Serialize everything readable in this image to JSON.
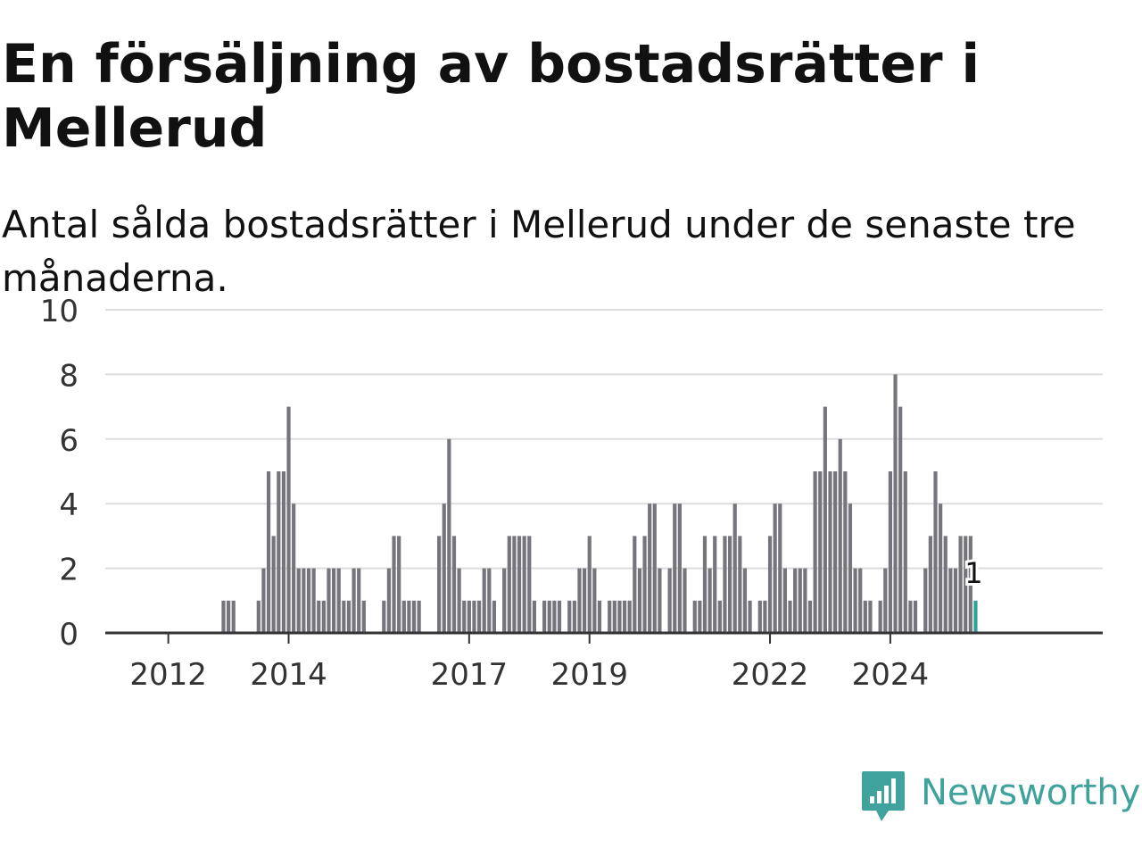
{
  "title": "En försäljning av bostadsrätter i Mellerud",
  "subtitle": "Antal sålda bostadsrätter i Mellerud under de senaste tre månaderna.",
  "brand": {
    "name": "Newsworthy",
    "icon": "newsworthy-logo-icon"
  },
  "colors": {
    "bar": "#76757d",
    "highlight": "#2fa198",
    "gridline": "#dddddd",
    "axis": "#333333",
    "brand": "#3fa29c"
  },
  "chart_data": {
    "type": "bar",
    "title": "",
    "xlabel": "",
    "ylabel": "",
    "ylim": [
      0,
      10
    ],
    "yticks": [
      0,
      2,
      4,
      6,
      8,
      10
    ],
    "grid": true,
    "x_start": "2011-01",
    "x_ticks": [
      {
        "label": "2012",
        "month": "2012-01"
      },
      {
        "label": "2014",
        "month": "2014-01"
      },
      {
        "label": "2017",
        "month": "2017-01"
      },
      {
        "label": "2019",
        "month": "2019-01"
      },
      {
        "label": "2022",
        "month": "2022-01"
      },
      {
        "label": "2024",
        "month": "2024-01"
      }
    ],
    "values": [
      0,
      0,
      0,
      0,
      0,
      0,
      0,
      0,
      0,
      0,
      0,
      0,
      0,
      0,
      0,
      0,
      0,
      0,
      0,
      0,
      0,
      0,
      0,
      1,
      1,
      1,
      0,
      0,
      0,
      0,
      1,
      2,
      5,
      3,
      5,
      5,
      7,
      4,
      2,
      2,
      2,
      2,
      1,
      1,
      2,
      2,
      2,
      1,
      1,
      2,
      2,
      1,
      0,
      0,
      0,
      1,
      2,
      3,
      3,
      1,
      1,
      1,
      1,
      0,
      0,
      0,
      3,
      4,
      6,
      3,
      2,
      1,
      1,
      1,
      1,
      2,
      2,
      1,
      0,
      2,
      3,
      3,
      3,
      3,
      3,
      1,
      0,
      1,
      1,
      1,
      1,
      0,
      1,
      1,
      2,
      2,
      3,
      2,
      1,
      0,
      1,
      1,
      1,
      1,
      1,
      3,
      2,
      3,
      4,
      4,
      2,
      0,
      2,
      4,
      4,
      2,
      0,
      1,
      1,
      3,
      2,
      3,
      1,
      3,
      3,
      4,
      3,
      2,
      1,
      0,
      1,
      1,
      3,
      4,
      4,
      2,
      1,
      2,
      2,
      2,
      1,
      5,
      5,
      7,
      5,
      5,
      6,
      5,
      4,
      2,
      2,
      1,
      1,
      0,
      1,
      2,
      5,
      8,
      7,
      5,
      1,
      1,
      0,
      2,
      3,
      5,
      4,
      3,
      2,
      2,
      3,
      3,
      3,
      1
    ],
    "highlight_last": true,
    "highlight_label": "1"
  }
}
